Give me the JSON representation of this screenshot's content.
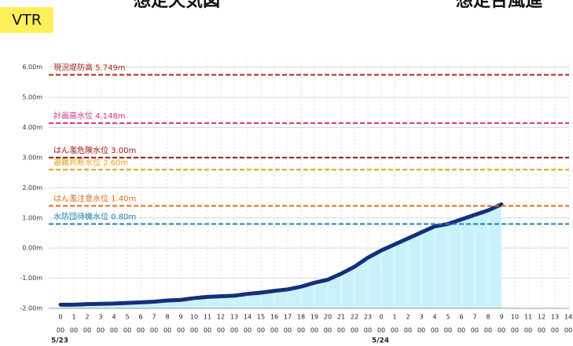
{
  "header": {
    "titles": [
      "想定天気図",
      "想定台風進"
    ],
    "badge": "VTR"
  },
  "chart_data": {
    "type": "line",
    "categories": [
      "0",
      "1",
      "2",
      "3",
      "4",
      "5",
      "6",
      "7",
      "8",
      "9",
      "10",
      "11",
      "12",
      "13",
      "14",
      "15",
      "16",
      "17",
      "18",
      "19",
      "20",
      "21",
      "22",
      "23",
      "0",
      "1",
      "2",
      "3",
      "4",
      "5",
      "6",
      "7",
      "8",
      "9",
      "10",
      "11",
      "12",
      "13",
      "14"
    ],
    "minute_labels": [
      "00",
      "00",
      "00",
      "00",
      "00",
      "00",
      "00",
      "00",
      "00",
      "00",
      "00",
      "00",
      "00",
      "00",
      "00",
      "00",
      "00",
      "00",
      "00",
      "00",
      "00",
      "00",
      "00",
      "00",
      "00",
      "00",
      "00",
      "00",
      "00",
      "00",
      "00",
      "00",
      "00",
      "00",
      "00",
      "00",
      "00",
      "00",
      "00"
    ],
    "dates": [
      "5/23",
      "5/24"
    ],
    "series": [
      {
        "color": "#14307a",
        "fill": "#c9f1f9",
        "values": [
          -1.88,
          -1.88,
          -1.86,
          -1.85,
          -1.84,
          -1.82,
          -1.8,
          -1.78,
          -1.74,
          -1.72,
          -1.66,
          -1.62,
          -1.6,
          -1.58,
          -1.52,
          -1.48,
          -1.42,
          -1.37,
          -1.28,
          -1.15,
          -1.05,
          -0.85,
          -0.62,
          -0.32,
          -0.08,
          0.12,
          0.32,
          0.52,
          0.72,
          0.8,
          0.95,
          1.1,
          1.25,
          1.45,
          null,
          null,
          null,
          null,
          null
        ]
      }
    ],
    "ylim": [
      -2,
      6.2
    ],
    "yticks": [
      {
        "value": 6,
        "label": "6.00m"
      },
      {
        "value": 5,
        "label": "5.00m"
      },
      {
        "value": 4,
        "label": "4.00m"
      },
      {
        "value": 3,
        "label": "3.00m"
      },
      {
        "value": 2,
        "label": "2.00m"
      },
      {
        "value": 1,
        "label": "1.00m"
      },
      {
        "value": 0,
        "label": "0.00m"
      },
      {
        "value": -1,
        "label": "-1.00m"
      },
      {
        "value": -2,
        "label": "-2.00m"
      }
    ],
    "grid": true,
    "thresholds": [
      {
        "label": "現況堤防高 5.749m",
        "value": 5.749,
        "color": "#b0261e"
      },
      {
        "label": "計画高水位 4.148m",
        "value": 4.148,
        "color": "#d0318e"
      },
      {
        "label": "はん濫危険水位 3.00m",
        "value": 3.0,
        "color": "#a0141a"
      },
      {
        "label": "避難判断水位 2.60m",
        "value": 2.6,
        "color": "#e2a21e"
      },
      {
        "label": "はん濫注意水位 1.40m",
        "value": 1.4,
        "color": "#d8701c"
      },
      {
        "label": "水防団待機水位 0.80m",
        "value": 0.8,
        "color": "#1c82b0"
      }
    ]
  }
}
